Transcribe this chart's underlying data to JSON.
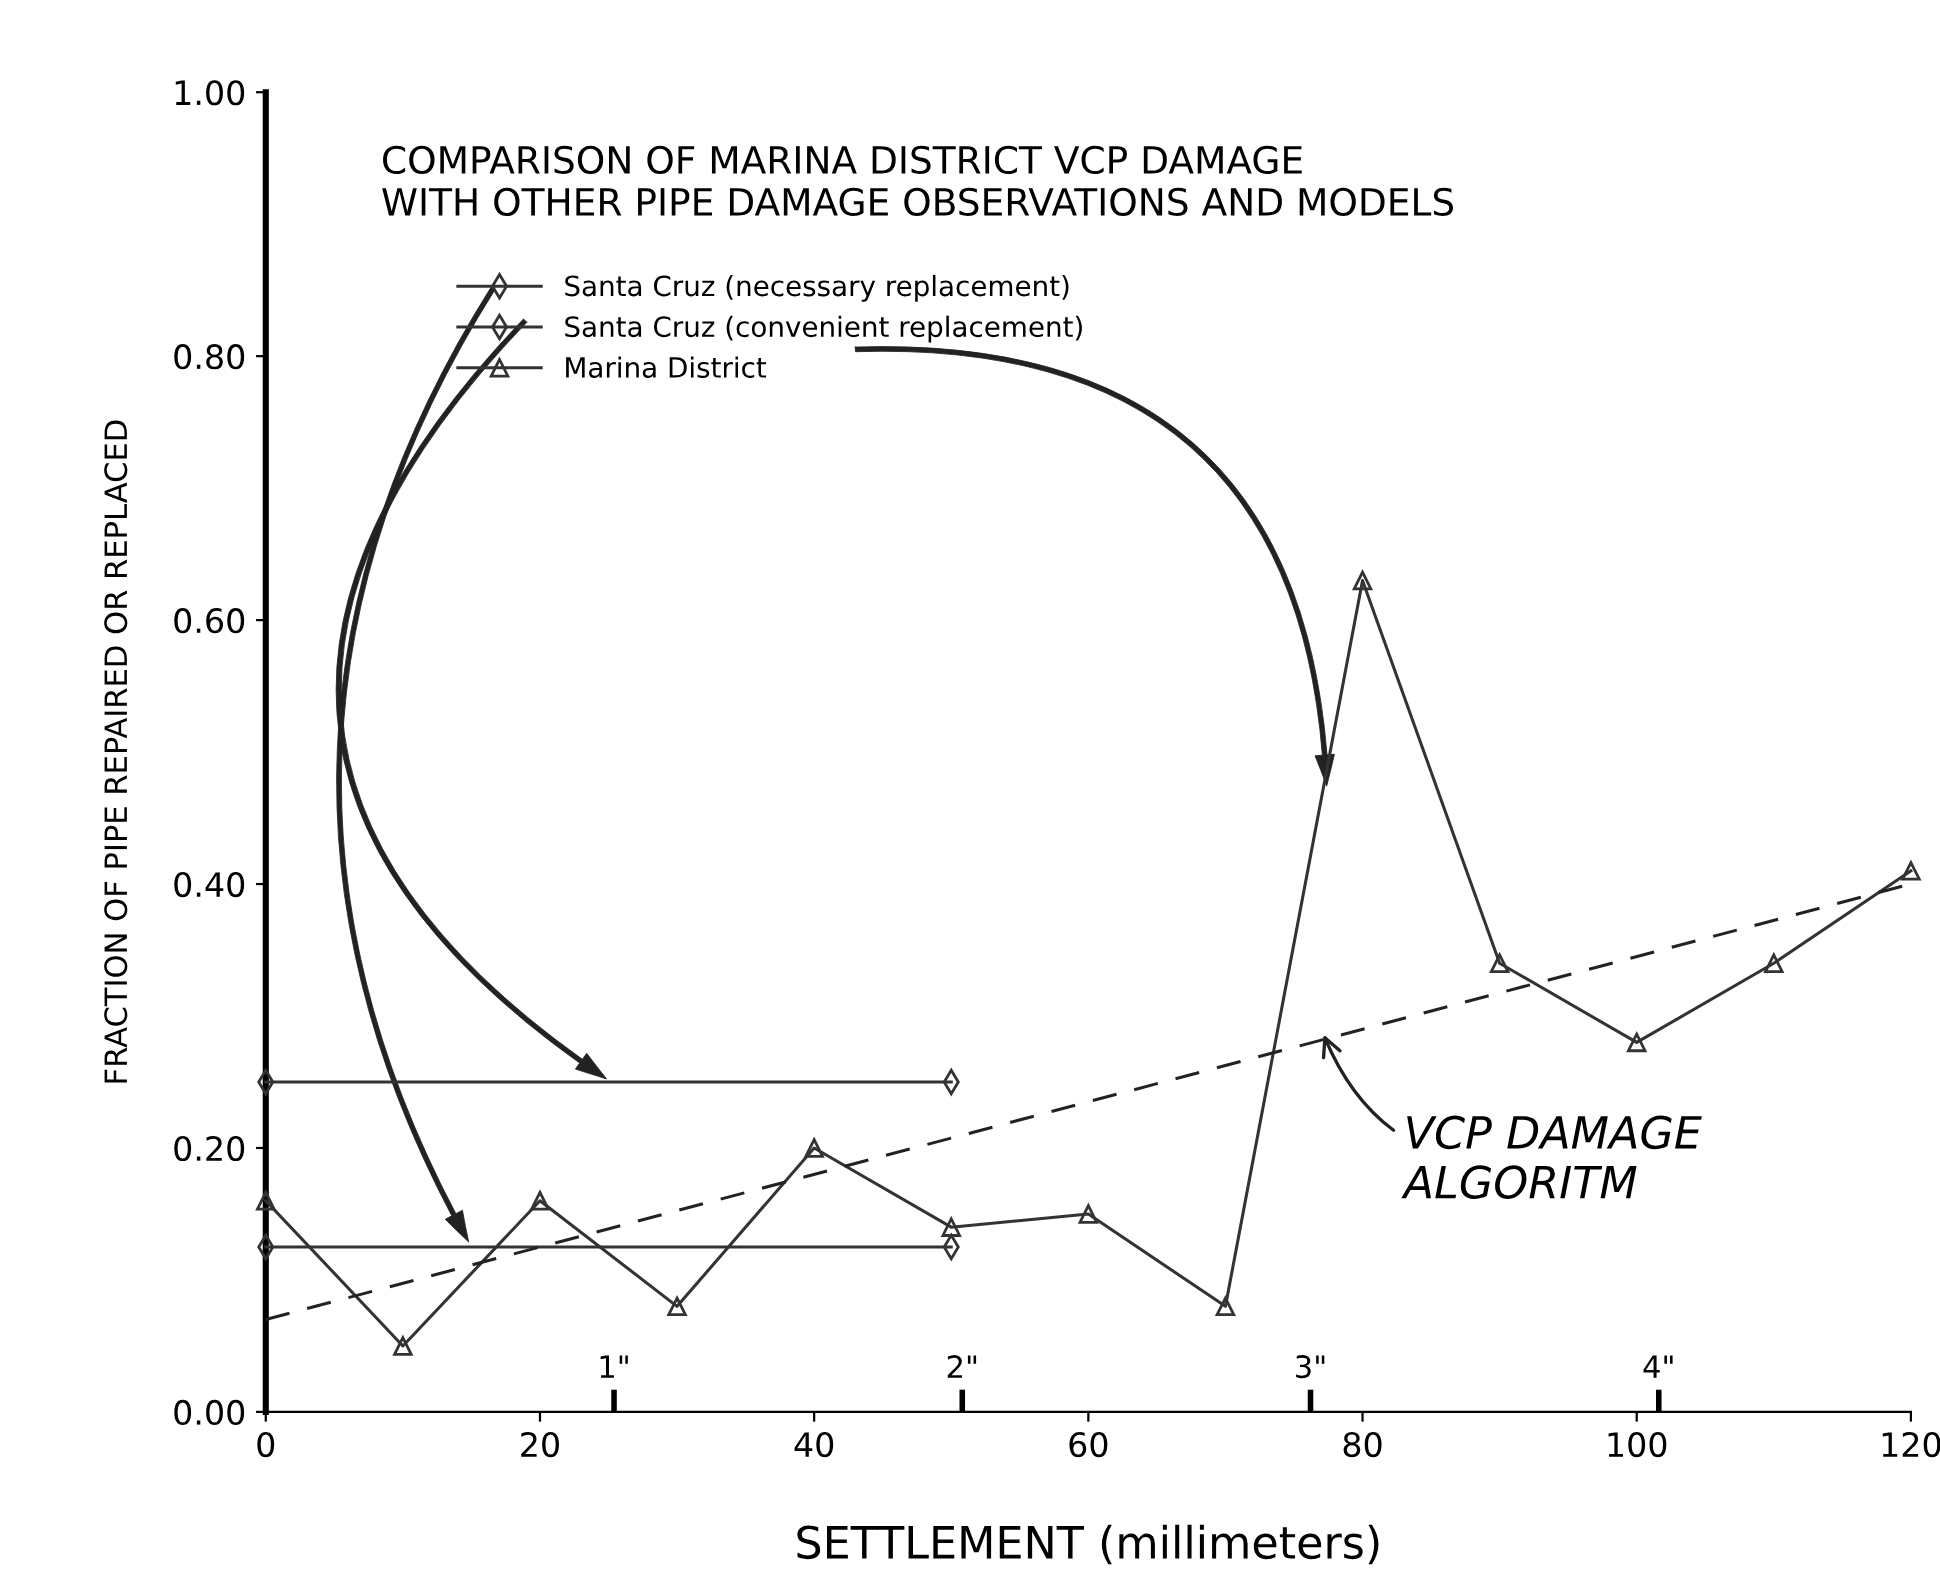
{
  "chart_data": {
    "type": "line",
    "title": "COMPARISON OF MARINA DISTRICT VCP DAMAGE\nWITH OTHER PIPE DAMAGE OBSERVATIONS AND MODELS",
    "xlabel": "SETTLEMENT (millimeters)",
    "ylabel": "FRACTION OF PIPE REPAIRED OR REPLACED",
    "x": [
      0,
      10,
      20,
      30,
      40,
      50,
      60,
      70,
      80,
      90,
      100,
      110,
      120
    ],
    "series": [
      {
        "name": "Santa Cruz (necessary replacement)",
        "color": "#333333",
        "x": [
          0,
          50
        ],
        "values": [
          0.125,
          0.125
        ],
        "marker": "diamond"
      },
      {
        "name": "Santa Cruz (convenient replacement)",
        "color": "#333333",
        "x": [
          0,
          50
        ],
        "values": [
          0.25,
          0.25
        ],
        "marker": "diamond"
      },
      {
        "name": "Marina District",
        "color": "#333333",
        "values": [
          0.16,
          0.05,
          0.16,
          0.08,
          0.2,
          0.14,
          0.15,
          0.08,
          0.63,
          0.34,
          0.28,
          0.34,
          0.41
        ],
        "marker": "triangle"
      },
      {
        "color": "#222222",
        "x": [
          0,
          120
        ],
        "values": [
          0.07,
          0.4
        ],
        "line_style": "dashed",
        "marker": "none"
      }
    ],
    "annotations": [
      {
        "text": "VCP DAMAGE\nALGORITM",
        "x": 77,
        "y": 0.29
      }
    ],
    "xlim": [
      0,
      120
    ],
    "xticks": [
      0,
      20,
      40,
      60,
      80,
      100,
      120
    ],
    "ylim": [
      0,
      1.0
    ],
    "yticks": [
      {
        "value": 0,
        "label": "0.00"
      },
      {
        "value": 0.2,
        "label": "0.20"
      },
      {
        "value": 0.4,
        "label": "0.40"
      },
      {
        "value": 0.6,
        "label": "0.60"
      },
      {
        "value": 0.8,
        "label": "0.80"
      },
      {
        "value": 1.0,
        "label": "1.00"
      }
    ],
    "x2lim": [
      0,
      4.724
    ],
    "x2ticks": [
      {
        "value": 1,
        "label": "1\""
      },
      {
        "value": 2,
        "label": "2\""
      },
      {
        "value": 3,
        "label": "3\""
      },
      {
        "value": 4,
        "label": "4\""
      }
    ],
    "legend": "top left",
    "grid": false
  }
}
